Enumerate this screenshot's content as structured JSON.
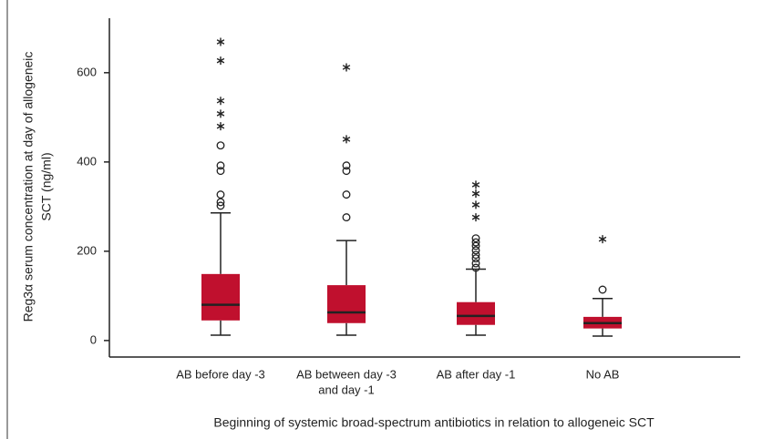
{
  "chart_data": {
    "type": "box",
    "ylabel": [
      "Reg3α serum concentration at day of allogeneic",
      "SCT (ng/ml)"
    ],
    "xlabel": "Beginning of systemic broad-spectrum antibiotics in relation to allogeneic SCT",
    "categories": [
      [
        "AB before day -3"
      ],
      [
        "AB between day -3",
        "and day -1"
      ],
      [
        "AB after day -1"
      ],
      [
        "No AB"
      ]
    ],
    "color": "#c0102e",
    "ylim": [
      -37,
      718
    ],
    "yticks": [
      0,
      200,
      400,
      600
    ],
    "boxes": [
      {
        "min": 12,
        "q1": 45,
        "median": 80,
        "q3": 149,
        "max": 286,
        "outliers": [
          302,
          310,
          327,
          380,
          392,
          437
        ],
        "extremes": [
          480,
          508,
          537,
          627,
          669
        ]
      },
      {
        "min": 12,
        "q1": 39,
        "median": 63,
        "q3": 124,
        "max": 224,
        "outliers": [
          276,
          327,
          380,
          392
        ],
        "extremes": [
          451,
          612
        ]
      },
      {
        "min": 12,
        "q1": 35,
        "median": 55,
        "q3": 86,
        "max": 160,
        "outliers": [
          163,
          173,
          184,
          192,
          202,
          212,
          220,
          229
        ],
        "extremes": [
          276,
          304,
          329,
          349
        ]
      },
      {
        "min": 10,
        "q1": 27,
        "median": 39,
        "q3": 53,
        "max": 94,
        "outliers": [
          114
        ],
        "extremes": [
          227
        ]
      }
    ]
  }
}
